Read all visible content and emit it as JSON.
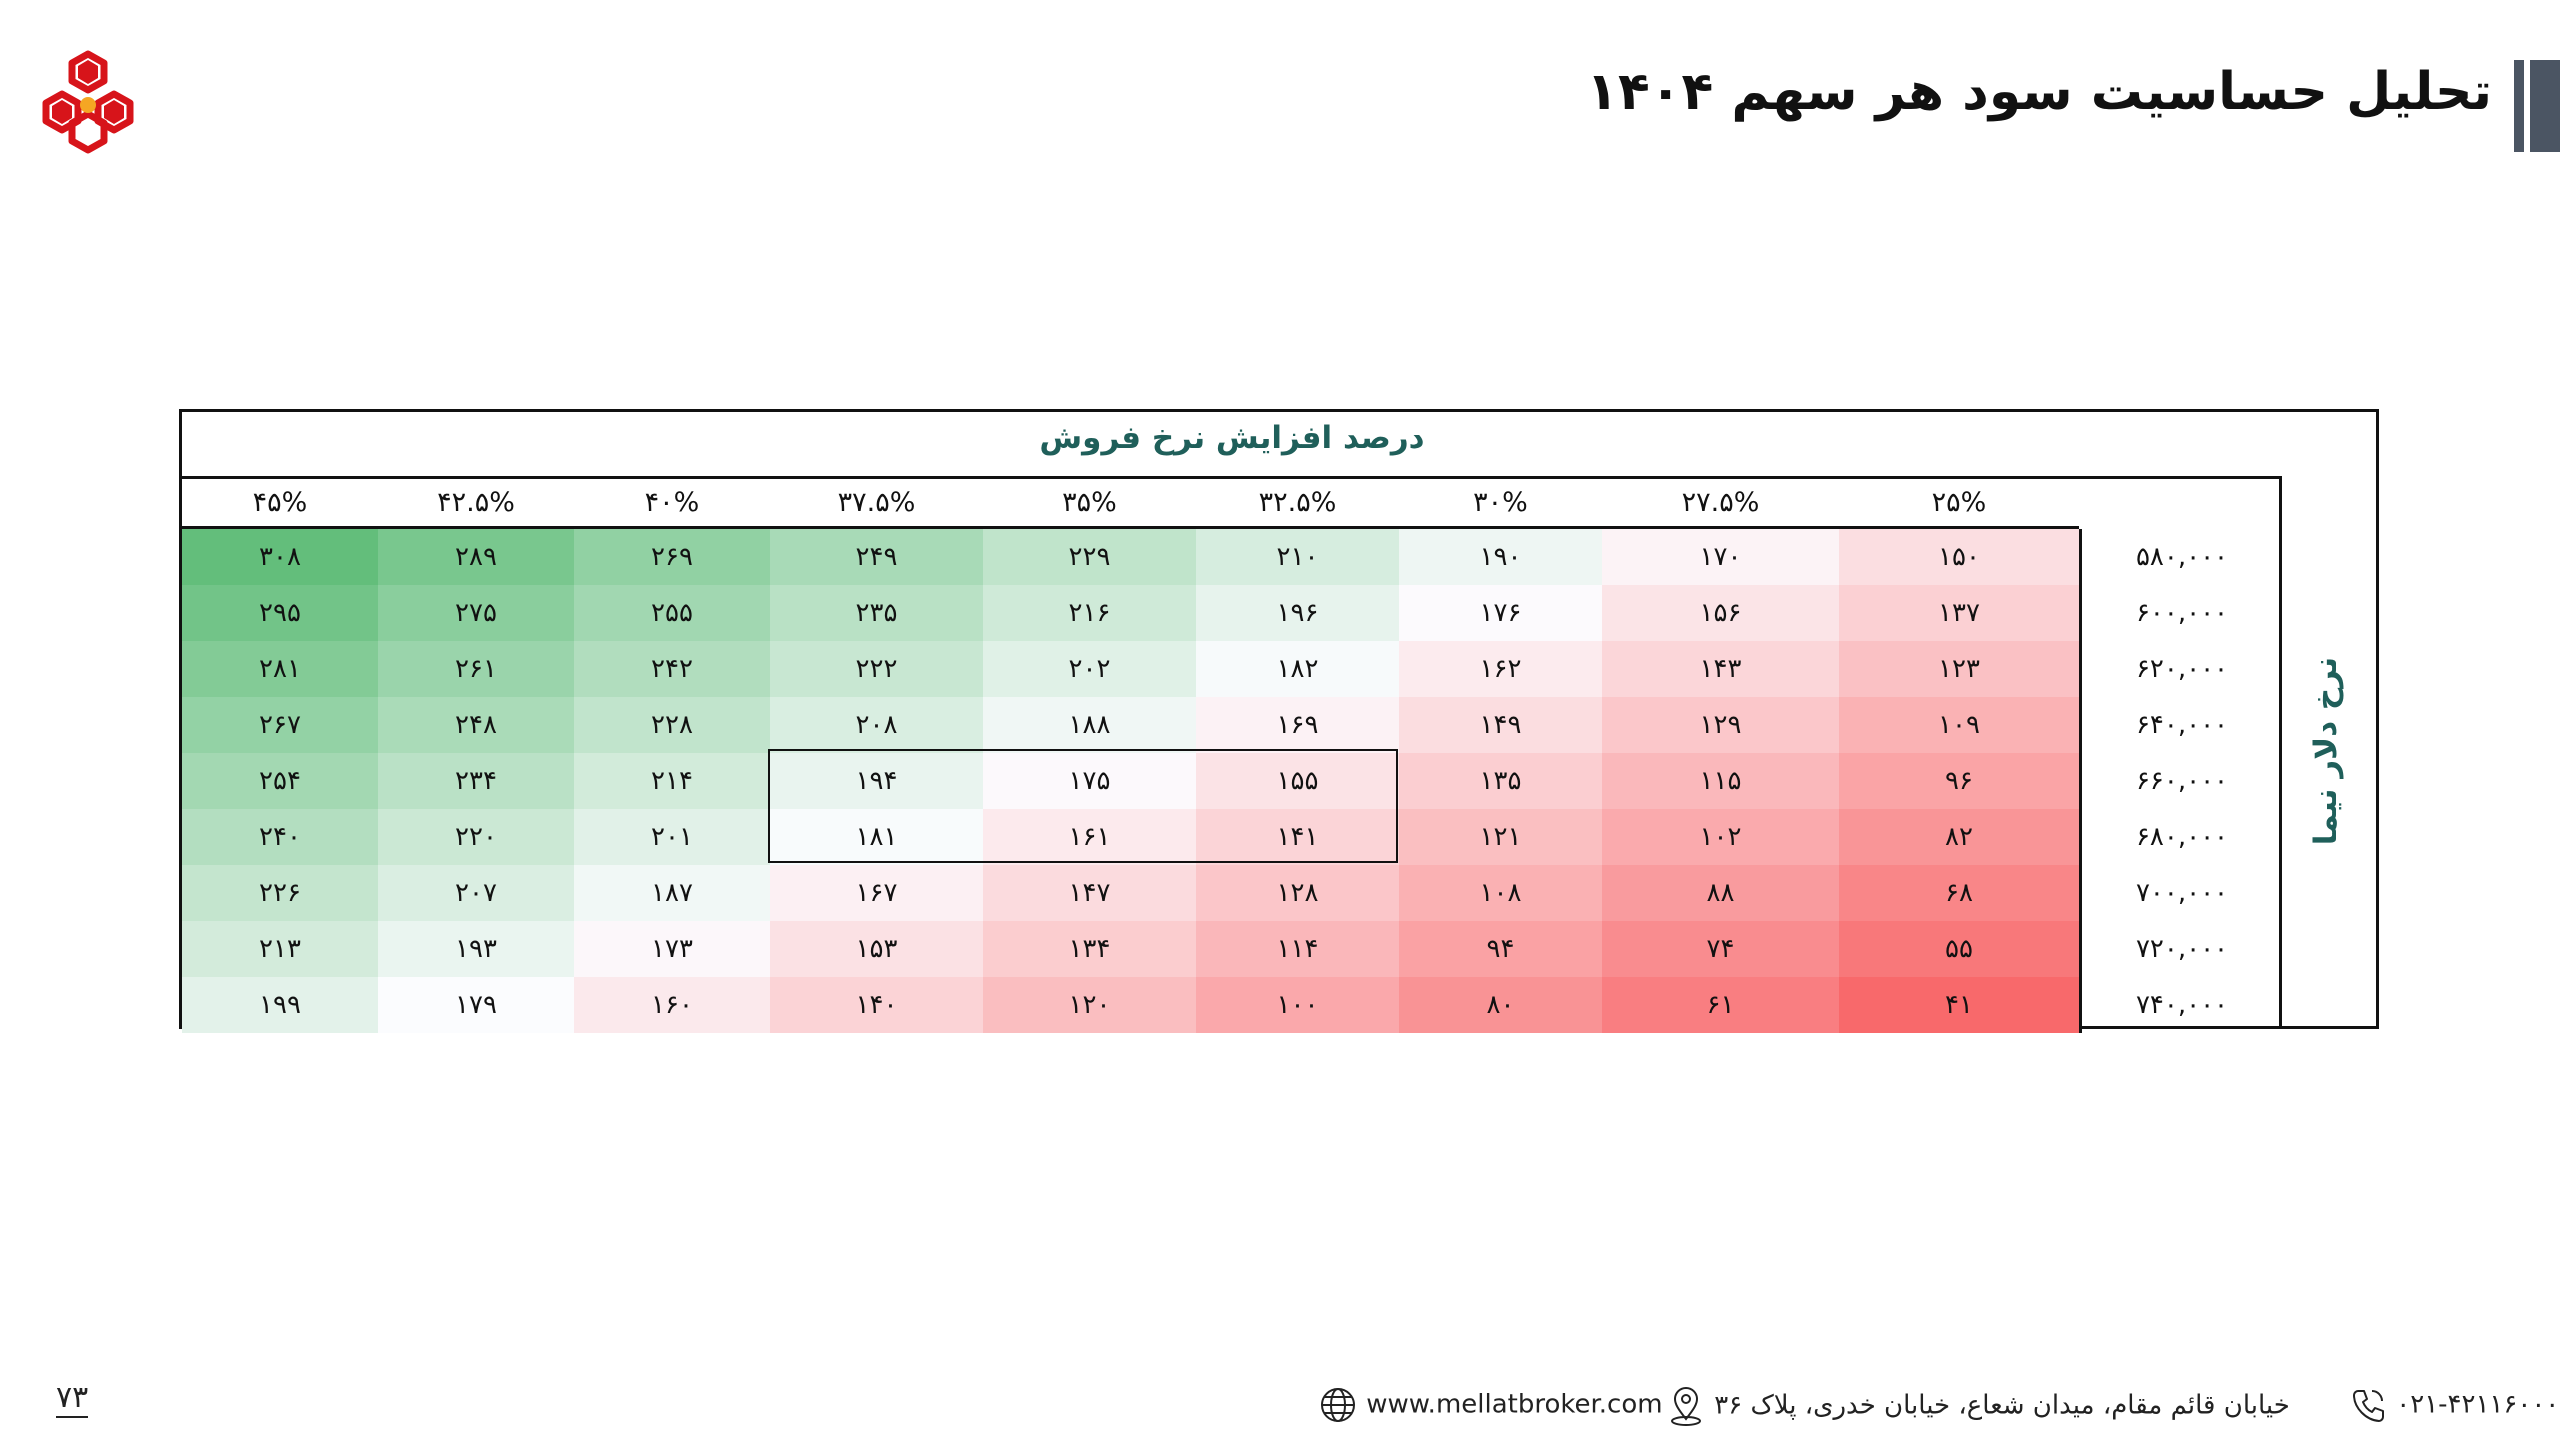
{
  "header": {
    "title": "تحلیل حساسیت سود هر سهم ۱۴۰۴"
  },
  "logo": {
    "icon": "company-logo-hexagons",
    "colors": [
      "#d7141a",
      "#f5a623"
    ]
  },
  "table": {
    "column_header_title": "درصد افزایش نرخ فروش",
    "row_header_title": "نرخ دلار نیما",
    "columns": [
      "۴۵%",
      "۴۲.۵%",
      "۴۰%",
      "۳۷.۵%",
      "۳۵%",
      "۳۲.۵%",
      "۳۰%",
      "۲۷.۵%",
      "۲۵%"
    ],
    "rows": [
      {
        "label": "۵۸۰,۰۰۰",
        "cells": [
          "۳۰۸",
          "۲۸۹",
          "۲۶۹",
          "۲۴۹",
          "۲۲۹",
          "۲۱۰",
          "۱۹۰",
          "۱۷۰",
          "۱۵۰"
        ]
      },
      {
        "label": "۶۰۰,۰۰۰",
        "cells": [
          "۲۹۵",
          "۲۷۵",
          "۲۵۵",
          "۲۳۵",
          "۲۱۶",
          "۱۹۶",
          "۱۷۶",
          "۱۵۶",
          "۱۳۷"
        ]
      },
      {
        "label": "۶۲۰,۰۰۰",
        "cells": [
          "۲۸۱",
          "۲۶۱",
          "۲۴۲",
          "۲۲۲",
          "۲۰۲",
          "۱۸۲",
          "۱۶۲",
          "۱۴۳",
          "۱۲۳"
        ]
      },
      {
        "label": "۶۴۰,۰۰۰",
        "cells": [
          "۲۶۷",
          "۲۴۸",
          "۲۲۸",
          "۲۰۸",
          "۱۸۸",
          "۱۶۹",
          "۱۴۹",
          "۱۲۹",
          "۱۰۹"
        ]
      },
      {
        "label": "۶۶۰,۰۰۰",
        "cells": [
          "۲۵۴",
          "۲۳۴",
          "۲۱۴",
          "۱۹۴",
          "۱۷۵",
          "۱۵۵",
          "۱۳۵",
          "۱۱۵",
          "۹۶"
        ]
      },
      {
        "label": "۶۸۰,۰۰۰",
        "cells": [
          "۲۴۰",
          "۲۲۰",
          "۲۰۱",
          "۱۸۱",
          "۱۶۱",
          "۱۴۱",
          "۱۲۱",
          "۱۰۲",
          "۸۲"
        ]
      },
      {
        "label": "۷۰۰,۰۰۰",
        "cells": [
          "۲۲۶",
          "۲۰۷",
          "۱۸۷",
          "۱۶۷",
          "۱۴۷",
          "۱۲۸",
          "۱۰۸",
          "۸۸",
          "۶۸"
        ]
      },
      {
        "label": "۷۲۰,۰۰۰",
        "cells": [
          "۲۱۳",
          "۱۹۳",
          "۱۷۳",
          "۱۵۳",
          "۱۳۴",
          "۱۱۴",
          "۹۴",
          "۷۴",
          "۵۵"
        ]
      },
      {
        "label": "۷۴۰,۰۰۰",
        "cells": [
          "۱۹۹",
          "۱۷۹",
          "۱۶۰",
          "۱۴۰",
          "۱۲۰",
          "۱۰۰",
          "۸۰",
          "۶۱",
          "۴۱"
        ]
      }
    ],
    "numeric_values": [
      [
        308,
        289,
        269,
        249,
        229,
        210,
        190,
        170,
        150
      ],
      [
        295,
        275,
        255,
        235,
        216,
        196,
        176,
        156,
        137
      ],
      [
        281,
        261,
        242,
        222,
        202,
        182,
        162,
        143,
        123
      ],
      [
        267,
        248,
        228,
        208,
        188,
        169,
        149,
        129,
        109
      ],
      [
        254,
        234,
        214,
        194,
        175,
        155,
        135,
        115,
        96
      ],
      [
        240,
        220,
        201,
        181,
        161,
        141,
        121,
        102,
        82
      ],
      [
        226,
        207,
        187,
        167,
        147,
        128,
        108,
        88,
        68
      ],
      [
        213,
        193,
        173,
        153,
        134,
        114,
        94,
        74,
        55
      ],
      [
        199,
        179,
        160,
        140,
        120,
        100,
        80,
        61,
        41
      ]
    ],
    "color_scale": {
      "low": "#f8696b",
      "mid": "#fcfcff",
      "high": "#63be7b",
      "mid_value": 178
    }
  },
  "footer": {
    "page_number": "۷۳",
    "website": "www.mellatbroker.com",
    "address": "خیابان قائم مقام، میدان شعاع، خیابان خدری، پلاک ۳۶",
    "phone": "۰۲۱-۴۲۱۱۶۰۰۰",
    "icons": [
      "globe-icon",
      "location-pin-icon",
      "phone-icon"
    ]
  }
}
